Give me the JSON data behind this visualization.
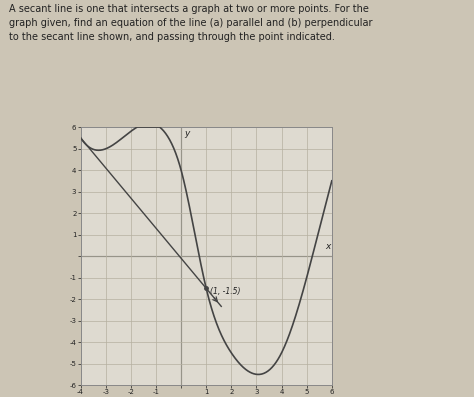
{
  "title_text": "A secant line is one that intersects a graph at two or more points. For the graph given, find an equation of the line (a) parallel and (b) perpendicular to the secant line shown, and passing through the point indicated.",
  "bg_color": "#ccc5b5",
  "graph_bg": "#dedad0",
  "grid_color": "#b5b0a0",
  "curve_color": "#444444",
  "secant_color": "#444444",
  "point_color": "#444444",
  "text_color": "#222222",
  "xlim": [
    -4,
    6
  ],
  "ylim": [
    -6,
    6
  ],
  "xticks": [
    -4,
    -3,
    -2,
    -1,
    0,
    1,
    2,
    3,
    4,
    5,
    6
  ],
  "yticks": [
    -6,
    -5,
    -4,
    -3,
    -2,
    -1,
    0,
    1,
    2,
    3,
    4,
    5,
    6
  ],
  "point_x": 1,
  "point_y": -1.5,
  "point_label": "(1, -1.5)",
  "secant_x1": -4,
  "secant_y1": 5.5,
  "secant_x2": 1,
  "secant_y2": -1.5,
  "xlabel": "x",
  "ylabel": "y",
  "curve_pts_x": [
    -4,
    -2,
    -0.5,
    0,
    1,
    2,
    3,
    4,
    5,
    6
  ],
  "curve_pts_y": [
    5.5,
    5.8,
    5.5,
    4.0,
    -1.5,
    -4.5,
    -5.5,
    -4.5,
    -1.0,
    3.5
  ]
}
